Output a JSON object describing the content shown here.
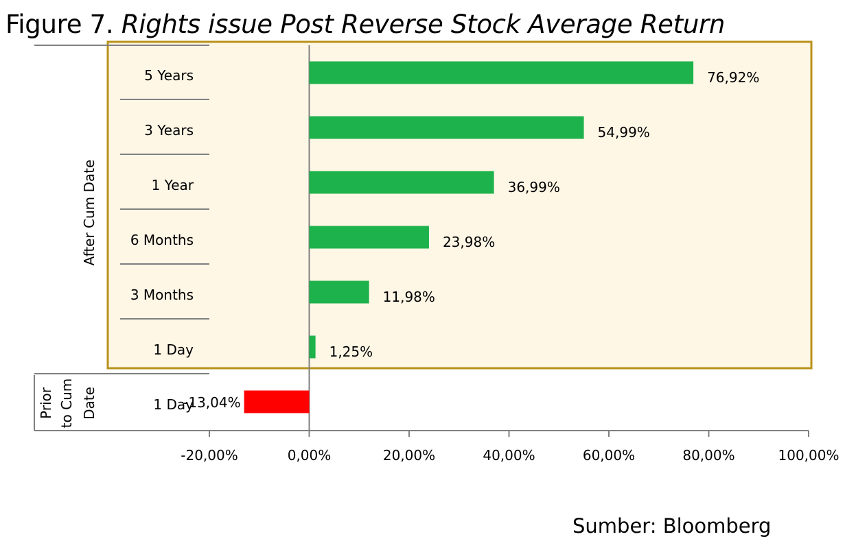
{
  "figure": {
    "label": "Figure 7.",
    "title": "Rights issue Post Reverse Stock Average Return"
  },
  "source": "Sumber: Bloomberg",
  "colors": {
    "positive": "#1db24b",
    "negative": "#ff0000",
    "panel_fill": "#fff7e6",
    "panel_border": "#b8921a",
    "axis": "#808080"
  },
  "chart_data": {
    "type": "bar",
    "orientation": "horizontal",
    "title": "Rights issue Post Reverse Stock Average Return",
    "groups": [
      {
        "name": "After Cum Date",
        "highlighted": true,
        "categories": [
          "5 Years",
          "3 Years",
          "1 Year",
          "6 Months",
          "3 Months",
          "1 Day"
        ],
        "values": [
          76.92,
          54.99,
          36.99,
          23.98,
          11.98,
          1.25
        ],
        "labels": [
          "76,92%",
          "54,99%",
          "36,99%",
          "23,98%",
          "11,98%",
          "1,25%"
        ]
      },
      {
        "name": "Prior to Cum Date",
        "highlighted": false,
        "categories": [
          "1 Day"
        ],
        "values": [
          -13.04
        ],
        "labels": [
          "-13,04%"
        ]
      }
    ],
    "x_axis": {
      "min": -20,
      "max": 100,
      "step": 20,
      "tick_labels": [
        "-20,00%",
        "0,00%",
        "20,00%",
        "40,00%",
        "60,00%",
        "80,00%",
        "100,00%"
      ]
    },
    "grid": false,
    "legend": "none"
  }
}
